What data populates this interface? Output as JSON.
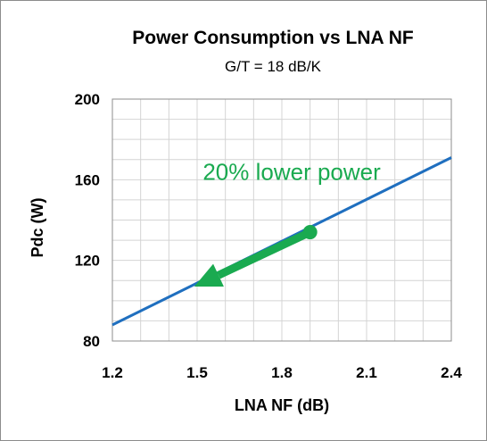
{
  "chart_data": {
    "type": "line",
    "title": "Power Consumption vs LNA NF",
    "subtitle": "G/T = 18 dB/K",
    "xlabel": "LNA NF (dB)",
    "ylabel": "Pdc (W)",
    "xlim": [
      1.2,
      2.4
    ],
    "ylim": [
      80,
      200
    ],
    "xticks": [
      1.2,
      1.5,
      1.8,
      2.1,
      2.4
    ],
    "xtick_labels": [
      "1.2",
      "1.5",
      "1.8",
      "2.1",
      "2.4"
    ],
    "yticks": [
      80,
      120,
      160,
      200
    ],
    "ytick_labels": [
      "80",
      "120",
      "160",
      "200"
    ],
    "x_minor_step": 0.1,
    "y_minor_step": 10,
    "grid": true,
    "series": [
      {
        "x": [
          1.2,
          2.4
        ],
        "y": [
          88,
          171
        ],
        "color": "#1f6fbf"
      }
    ],
    "annotations": [
      {
        "type": "arrow",
        "from": {
          "x": 1.9,
          "y": 134
        },
        "to": {
          "x": 1.49,
          "y": 107
        },
        "color": "#1aaa50"
      },
      {
        "type": "text",
        "text": "20% lower power",
        "x": 1.52,
        "y": 164,
        "color": "#1aaa50"
      }
    ]
  }
}
